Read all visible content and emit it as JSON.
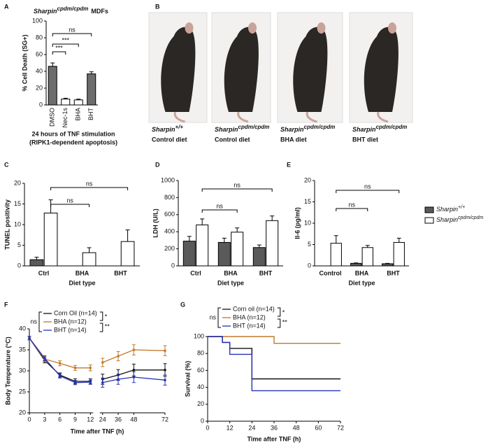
{
  "chart_data": [
    {
      "panel": "A",
      "type": "bar",
      "title_gene": "Sharpin",
      "title_genotype": "cpdm/cpdm",
      "title_rest": "MDFs",
      "ylabel": "% Cell Death (SG+)",
      "categories": [
        "DMSO",
        "Nec-1s",
        "BHA",
        "BHT"
      ],
      "values": [
        46,
        7,
        6,
        37
      ],
      "errors": [
        4,
        1,
        1,
        2.5
      ],
      "colors": [
        "#6d6d6d",
        "#ffffff",
        "#ffffff",
        "#6d6d6d"
      ],
      "ylim": [
        0,
        100
      ],
      "yticks": [
        0,
        20,
        40,
        60,
        80,
        100
      ],
      "annotations": [
        "ns",
        "***",
        "***"
      ],
      "footnote": "24 hours of TNF stimulation",
      "footnote_sub": "(RIPK1-dependent apoptosis)"
    },
    {
      "panel": "C",
      "type": "bar",
      "ylabel": "TUNEL positivity",
      "xlabel": "Diet type",
      "categories": [
        "Ctrl",
        "BHA",
        "BHT"
      ],
      "series": [
        {
          "color": "#5a5a5a",
          "values": [
            1.5,
            null,
            null
          ],
          "errors": [
            0.6,
            null,
            null
          ]
        },
        {
          "color": "#ffffff",
          "values": [
            12.8,
            3.2,
            5.9
          ],
          "errors": [
            3.2,
            1.2,
            2.8
          ]
        }
      ],
      "ylim": [
        0,
        20
      ],
      "yticks": [
        0,
        5,
        10,
        15,
        20
      ],
      "annotations": [
        "ns",
        "ns"
      ]
    },
    {
      "panel": "D",
      "type": "bar",
      "ylabel": "LDH (U/L)",
      "xlabel": "Diet type",
      "categories": [
        "Ctrl",
        "BHA",
        "BHT"
      ],
      "series": [
        {
          "color": "#5a5a5a",
          "values": [
            290,
            275,
            215
          ],
          "errors": [
            55,
            50,
            30
          ]
        },
        {
          "color": "#ffffff",
          "values": [
            480,
            395,
            530
          ],
          "errors": [
            70,
            50,
            55
          ]
        }
      ],
      "ylim": [
        0,
        1000
      ],
      "yticks": [
        0,
        200,
        400,
        600,
        800,
        1000
      ],
      "annotations": [
        "ns",
        "ns"
      ]
    },
    {
      "panel": "E",
      "type": "bar",
      "ylabel": "Il-6 (pg/ml)",
      "xlabel": "Diet type",
      "categories": [
        "Control",
        "BHA",
        "BHT"
      ],
      "series": [
        {
          "name": "Sharpin",
          "genotype": "+/+",
          "color": "#5a5a5a",
          "values": [
            0,
            0.6,
            0.5
          ],
          "errors": [
            0,
            0.1,
            0.1
          ]
        },
        {
          "name": "Sharpin",
          "genotype": "cpdm/cpdm",
          "color": "#ffffff",
          "values": [
            5.3,
            4.3,
            5.5
          ],
          "errors": [
            1.8,
            0.5,
            1.0
          ]
        }
      ],
      "ylim": [
        0,
        20
      ],
      "yticks": [
        0,
        5,
        10,
        15,
        20
      ],
      "annotations": [
        "ns",
        "ns"
      ],
      "legend": "right"
    },
    {
      "panel": "F",
      "type": "line",
      "ylabel": "Body Temperature (°C)",
      "xlabel": "Time after TNF (h)",
      "x": [
        0,
        3,
        6,
        9,
        12,
        24,
        36,
        48,
        72
      ],
      "xlim": [
        0,
        72
      ],
      "x_break": [
        12,
        24
      ],
      "xticks": [
        0,
        3,
        6,
        9,
        12,
        24,
        36,
        48,
        72
      ],
      "ylim": [
        20,
        40
      ],
      "yticks": [
        20,
        25,
        30,
        35,
        40
      ],
      "series": [
        {
          "name": "Corn Oil (n=14)",
          "color": "#111111",
          "values": [
            37.8,
            32.5,
            29,
            27.5,
            27.5,
            28,
            29,
            30.2,
            30.2
          ],
          "errors": [
            0.4,
            0.6,
            0.5,
            0.6,
            0.6,
            1.2,
            1.3,
            1.4,
            1.5
          ]
        },
        {
          "name": "BHA (n=12)",
          "color": "#c0792a",
          "values": [
            37.8,
            32.8,
            31.8,
            30.7,
            30.7,
            32,
            33.5,
            35,
            34.8
          ],
          "errors": [
            0.4,
            0.6,
            0.6,
            0.6,
            0.7,
            1.0,
            1.1,
            1.2,
            1.2
          ]
        },
        {
          "name": "BHT (n=14)",
          "color": "#2633b5",
          "values": [
            37.8,
            33,
            28.8,
            27.2,
            27.3,
            27.2,
            28,
            28.5,
            27.8
          ],
          "errors": [
            0.4,
            0.6,
            0.5,
            0.5,
            0.5,
            1.1,
            1.2,
            1.3,
            1.2
          ]
        }
      ],
      "annotations": [
        "ns",
        "*",
        "**"
      ]
    },
    {
      "panel": "G",
      "type": "step",
      "ylabel": "Survival (%)",
      "xlabel": "Time after TNF (h)",
      "xlim": [
        0,
        72
      ],
      "xticks": [
        0,
        12,
        24,
        36,
        48,
        60,
        72
      ],
      "ylim": [
        0,
        100
      ],
      "yticks": [
        0,
        20,
        40,
        60,
        80,
        100
      ],
      "series": [
        {
          "name": "Corn oil (n=14)",
          "color": "#111111",
          "x": [
            0,
            8,
            12,
            24,
            72
          ],
          "values": [
            100,
            93,
            86,
            50,
            50
          ]
        },
        {
          "name": "BHA (n=12)",
          "color": "#c0792a",
          "x": [
            0,
            36,
            72
          ],
          "values": [
            100,
            92,
            92
          ]
        },
        {
          "name": "BHT (n=14)",
          "color": "#2633b5",
          "x": [
            0,
            8,
            12,
            24,
            72
          ],
          "values": [
            100,
            93,
            79,
            36,
            36
          ]
        }
      ],
      "annotations": [
        "ns",
        "*",
        "**"
      ]
    }
  ],
  "photo_panel": {
    "panel": "B",
    "photos": [
      {
        "gene": "Sharpin",
        "genotype": "+/+",
        "diet": "Control diet"
      },
      {
        "gene": "Sharpin",
        "genotype": "cpdm/cpdm",
        "diet": "Control diet"
      },
      {
        "gene": "Sharpin",
        "genotype": "cpdm/cpdm",
        "diet": "BHA diet"
      },
      {
        "gene": "Sharpin",
        "genotype": "cpdm/cpdm",
        "diet": "BHT diet"
      }
    ]
  }
}
